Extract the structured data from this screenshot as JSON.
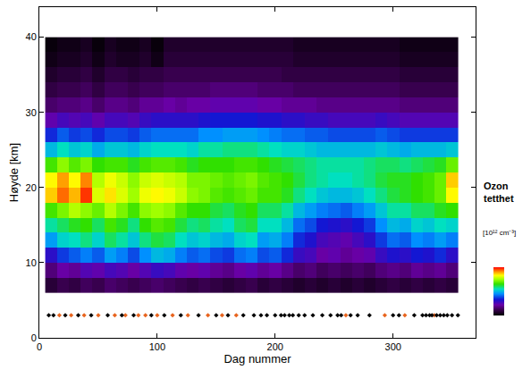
{
  "chart_data": {
    "type": "heatmap",
    "xlabel": "Dag nummer",
    "ylabel": "Høyde [km]",
    "xlim": [
      0,
      370
    ],
    "xticks": [
      0,
      100,
      200,
      300
    ],
    "ylim": [
      0,
      44
    ],
    "yticks": [
      0,
      10,
      20,
      30,
      40
    ],
    "colorbar": {
      "title": "Ozon tetthet",
      "units": "[10¹² cm⁻³]",
      "zlim": [
        0,
        6
      ],
      "tick_labels": false
    },
    "x": [
      10,
      20,
      30,
      40,
      50,
      60,
      70,
      80,
      90,
      100,
      110,
      120,
      130,
      140,
      150,
      160,
      170,
      180,
      190,
      200,
      210,
      220,
      230,
      240,
      250,
      260,
      270,
      280,
      290,
      300,
      310,
      320,
      330,
      340,
      350
    ],
    "y": [
      7,
      9,
      11,
      13,
      15,
      17,
      19,
      21,
      23,
      25,
      27,
      29,
      31,
      33,
      35,
      37,
      39
    ],
    "z": [
      [
        0.5,
        0.7,
        0.6,
        0.8,
        0.7,
        0.9,
        0.8,
        0.7,
        0.8,
        0.9,
        0.8,
        0.7,
        0.6,
        0.7,
        0.6,
        0.5,
        0.6,
        0.7,
        0.5,
        0.6,
        0.5,
        0.4,
        0.5,
        0.4,
        0.5,
        0.4,
        0.5,
        0.4,
        0.5,
        0.6,
        0.5,
        0.6,
        0.5,
        0.6,
        0.5
      ],
      [
        1.0,
        1.3,
        1.2,
        1.5,
        1.4,
        1.6,
        1.5,
        1.3,
        1.5,
        1.7,
        1.6,
        1.4,
        1.3,
        1.4,
        1.2,
        1.1,
        1.3,
        1.4,
        1.2,
        1.3,
        1.1,
        0.9,
        1.0,
        0.8,
        0.9,
        0.8,
        0.9,
        0.8,
        1.0,
        1.1,
        1.0,
        1.2,
        1.1,
        1.2,
        1.0
      ],
      [
        1.8,
        2.2,
        2.4,
        2.6,
        2.4,
        2.8,
        2.6,
        2.3,
        2.7,
        3.0,
        2.9,
        2.6,
        2.4,
        2.5,
        2.3,
        2.2,
        2.5,
        2.6,
        2.3,
        2.4,
        2.1,
        1.7,
        1.6,
        1.3,
        1.4,
        1.2,
        1.3,
        1.4,
        1.7,
        1.9,
        1.8,
        2.0,
        1.9,
        2.1,
        1.8
      ],
      [
        2.8,
        3.2,
        3.3,
        3.5,
        3.2,
        3.6,
        3.4,
        3.1,
        3.5,
        3.7,
        3.6,
        3.3,
        3.1,
        3.2,
        3.0,
        2.9,
        3.2,
        3.3,
        2.8,
        2.9,
        2.6,
        2.1,
        1.9,
        1.6,
        1.5,
        1.4,
        1.6,
        1.8,
        2.2,
        2.5,
        2.4,
        2.7,
        2.6,
        2.8,
        2.6
      ],
      [
        3.4,
        3.6,
        3.8,
        3.9,
        3.6,
        4.0,
        3.8,
        3.5,
        3.9,
        4.1,
        4.0,
        3.7,
        3.5,
        3.6,
        3.4,
        3.3,
        3.6,
        3.7,
        3.3,
        3.3,
        3.0,
        2.5,
        2.3,
        2.0,
        1.9,
        1.8,
        2.0,
        2.2,
        2.7,
        3.0,
        2.9,
        3.2,
        3.1,
        3.3,
        3.2
      ],
      [
        4.0,
        4.3,
        4.6,
        4.4,
        4.2,
        4.6,
        4.3,
        4.0,
        4.4,
        4.5,
        4.4,
        4.1,
        3.9,
        3.9,
        3.7,
        3.6,
        3.8,
        3.9,
        3.6,
        3.6,
        3.4,
        3.0,
        2.8,
        2.6,
        2.5,
        2.4,
        2.6,
        2.8,
        3.1,
        3.4,
        3.4,
        3.6,
        3.6,
        3.8,
        3.9
      ],
      [
        5.2,
        5.6,
        5.3,
        5.8,
        4.8,
        5.1,
        4.8,
        4.5,
        4.9,
        5.0,
        4.9,
        4.7,
        4.4,
        4.3,
        4.1,
        4.0,
        4.1,
        4.2,
        4.0,
        4.0,
        3.8,
        3.5,
        3.3,
        3.1,
        3.0,
        3.0,
        3.1,
        3.3,
        3.5,
        3.7,
        3.8,
        3.9,
        4.0,
        4.2,
        5.0
      ],
      [
        5.0,
        5.4,
        5.0,
        5.5,
        4.6,
        4.9,
        4.7,
        4.4,
        4.7,
        4.8,
        4.7,
        4.6,
        4.3,
        4.3,
        4.2,
        4.1,
        4.2,
        4.3,
        4.1,
        4.0,
        3.9,
        3.7,
        3.5,
        3.4,
        3.3,
        3.3,
        3.4,
        3.5,
        3.7,
        3.8,
        3.8,
        3.9,
        4.0,
        4.2,
        5.2
      ],
      [
        4.0,
        4.4,
        4.1,
        4.3,
        3.9,
        4.0,
        4.0,
        3.8,
        4.0,
        4.1,
        4.1,
        4.0,
        3.8,
        3.9,
        3.9,
        3.9,
        4.0,
        4.0,
        3.9,
        3.8,
        3.7,
        3.6,
        3.5,
        3.4,
        3.4,
        3.4,
        3.4,
        3.5,
        3.6,
        3.6,
        3.5,
        3.6,
        3.7,
        3.8,
        4.2
      ],
      [
        3.0,
        3.3,
        3.1,
        3.2,
        2.9,
        3.1,
        3.1,
        3.0,
        3.2,
        3.3,
        3.3,
        3.3,
        3.2,
        3.4,
        3.4,
        3.5,
        3.5,
        3.5,
        3.4,
        3.3,
        3.2,
        3.2,
        3.1,
        3.0,
        3.0,
        3.0,
        3.0,
        3.0,
        3.1,
        3.0,
        2.9,
        3.0,
        3.0,
        3.0,
        3.1
      ],
      [
        2.1,
        2.4,
        2.2,
        2.3,
        2.1,
        2.3,
        2.3,
        2.2,
        2.4,
        2.5,
        2.5,
        2.5,
        2.5,
        2.7,
        2.7,
        2.8,
        2.8,
        2.8,
        2.7,
        2.6,
        2.5,
        2.5,
        2.4,
        2.4,
        2.3,
        2.3,
        2.3,
        2.3,
        2.4,
        2.3,
        2.2,
        2.2,
        2.2,
        2.2,
        2.2
      ],
      [
        1.4,
        1.6,
        1.5,
        1.6,
        1.4,
        1.6,
        1.6,
        1.5,
        1.7,
        1.8,
        1.8,
        1.8,
        1.8,
        1.9,
        2.0,
        2.0,
        2.0,
        2.0,
        1.9,
        1.9,
        1.8,
        1.8,
        1.7,
        1.7,
        1.6,
        1.6,
        1.6,
        1.6,
        1.7,
        1.6,
        1.5,
        1.5,
        1.5,
        1.5,
        1.5
      ],
      [
        0.9,
        1.0,
        1.0,
        1.1,
        0.9,
        1.1,
        1.1,
        1.0,
        1.2,
        1.2,
        1.3,
        1.2,
        1.3,
        1.3,
        1.4,
        1.4,
        1.4,
        1.4,
        1.3,
        1.3,
        1.2,
        1.2,
        1.2,
        1.1,
        1.1,
        1.1,
        1.1,
        1.1,
        1.1,
        1.1,
        1.0,
        1.0,
        1.0,
        1.0,
        1.0
      ],
      [
        0.6,
        0.7,
        0.7,
        0.8,
        0.6,
        0.8,
        0.8,
        0.7,
        0.8,
        0.8,
        0.9,
        0.9,
        0.9,
        0.9,
        1.0,
        1.0,
        1.0,
        1.0,
        0.9,
        0.9,
        0.9,
        0.8,
        0.8,
        0.8,
        0.8,
        0.8,
        0.8,
        0.8,
        0.8,
        0.8,
        0.7,
        0.7,
        0.7,
        0.7,
        0.7
      ],
      [
        0.4,
        0.5,
        0.5,
        0.6,
        0.4,
        0.6,
        0.6,
        0.5,
        0.6,
        0.6,
        0.7,
        0.7,
        0.7,
        0.7,
        0.7,
        0.7,
        0.7,
        0.7,
        0.7,
        0.7,
        0.6,
        0.6,
        0.6,
        0.6,
        0.6,
        0.6,
        0.6,
        0.6,
        0.6,
        0.6,
        0.5,
        0.5,
        0.5,
        0.5,
        0.5
      ],
      [
        0.2,
        0.3,
        0.3,
        0.4,
        0.2,
        0.4,
        0.3,
        0.3,
        0.4,
        0.2,
        0.5,
        0.5,
        0.5,
        0.5,
        0.5,
        0.5,
        0.5,
        0.5,
        0.5,
        0.5,
        0.5,
        0.4,
        0.4,
        0.4,
        0.4,
        0.4,
        0.4,
        0.4,
        0.4,
        0.4,
        0.3,
        0.3,
        0.3,
        0.3,
        0.3
      ],
      [
        0.1,
        0.2,
        0.2,
        0.3,
        0.1,
        0.3,
        0.2,
        0.2,
        0.3,
        0.1,
        0.4,
        0.4,
        0.4,
        0.4,
        0.4,
        0.4,
        0.4,
        0.4,
        0.4,
        0.4,
        0.4,
        0.3,
        0.3,
        0.3,
        0.3,
        0.3,
        0.3,
        0.3,
        0.3,
        0.3,
        0.2,
        0.2,
        0.2,
        0.2,
        0.2
      ]
    ],
    "series": [
      {
        "type": "scatter",
        "marker": "diamond",
        "color": "#e8641e",
        "x": [
          17,
          27,
          38,
          50,
          64,
          73,
          84,
          90,
          100,
          113,
          126,
          143,
          155,
          167,
          260,
          293,
          310,
          335
        ],
        "values": [
          3,
          3,
          3,
          3,
          3,
          3,
          3,
          3,
          3,
          3,
          3,
          3,
          3,
          3,
          3,
          3,
          3,
          3
        ]
      },
      {
        "type": "scatter",
        "marker": "diamond",
        "color": "#000000",
        "x": [
          8,
          12,
          22,
          33,
          44,
          58,
          70,
          80,
          95,
          106,
          120,
          135,
          150,
          160,
          173,
          182,
          188,
          193,
          200,
          205,
          208,
          212,
          215,
          220,
          225,
          232,
          240,
          247,
          253,
          256,
          264,
          270,
          280,
          300,
          305,
          318,
          325,
          328,
          331,
          333,
          337,
          340,
          343,
          346,
          350,
          355
        ],
        "values": [
          3,
          3,
          3,
          3,
          3,
          3,
          3,
          3,
          3,
          3,
          3,
          3,
          3,
          3,
          3,
          3,
          3,
          3,
          3,
          3,
          3,
          3,
          3,
          3,
          3,
          3,
          3,
          3,
          3,
          3,
          3,
          3,
          3,
          3,
          3,
          3,
          3,
          3,
          3,
          3,
          3,
          3,
          3,
          3,
          3,
          3
        ]
      }
    ]
  }
}
